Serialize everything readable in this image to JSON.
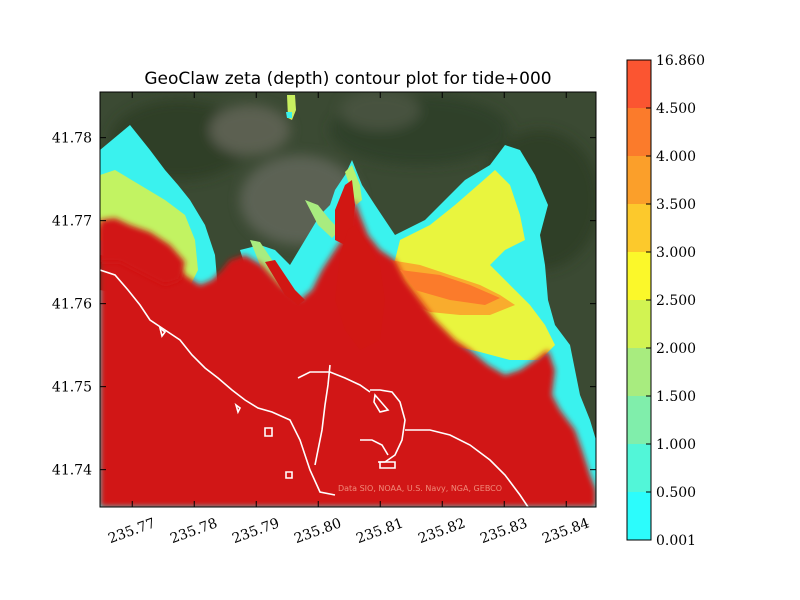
{
  "chart_data": {
    "type": "heatmap",
    "title": "GeoClaw zeta (depth) contour plot for tide+000",
    "xlabel": "",
    "ylabel": "",
    "xlim": [
      235.7648,
      235.8448
    ],
    "ylim": [
      41.7355,
      41.7855
    ],
    "x_ticks": [
      235.77,
      235.78,
      235.79,
      235.8,
      235.81,
      235.82,
      235.83,
      235.84
    ],
    "x_tick_labels": [
      "235.77",
      "235.78",
      "235.79",
      "235.80",
      "235.81",
      "235.82",
      "235.83",
      "235.84"
    ],
    "y_ticks": [
      41.74,
      41.75,
      41.76,
      41.77,
      41.78
    ],
    "y_tick_labels": [
      "41.74",
      "41.75",
      "41.76",
      "41.77",
      "41.78"
    ],
    "attribution": "Data SIO, NOAA, U.S. Navy, NGA, GEBCO",
    "colorbar": {
      "levels": [
        0.001,
        0.5,
        1.0,
        1.5,
        2.0,
        2.5,
        3.0,
        3.5,
        4.0,
        4.5,
        16.86
      ],
      "labels": [
        "0.001",
        "0.500",
        "1.000",
        "1.500",
        "2.000",
        "2.500",
        "3.000",
        "3.500",
        "4.000",
        "4.500",
        "16.860"
      ],
      "colors": [
        "#2cfcfc",
        "#52f6d8",
        "#80eeab",
        "#a8ec7f",
        "#d2f352",
        "#fbf82a",
        "#fcc92c",
        "#fb9f2a",
        "#fb7b2b",
        "#fb5531"
      ]
    },
    "colors": {
      "ocean": "#d11713",
      "land": "#3b4a33",
      "shoreline": "#ffffff"
    }
  }
}
